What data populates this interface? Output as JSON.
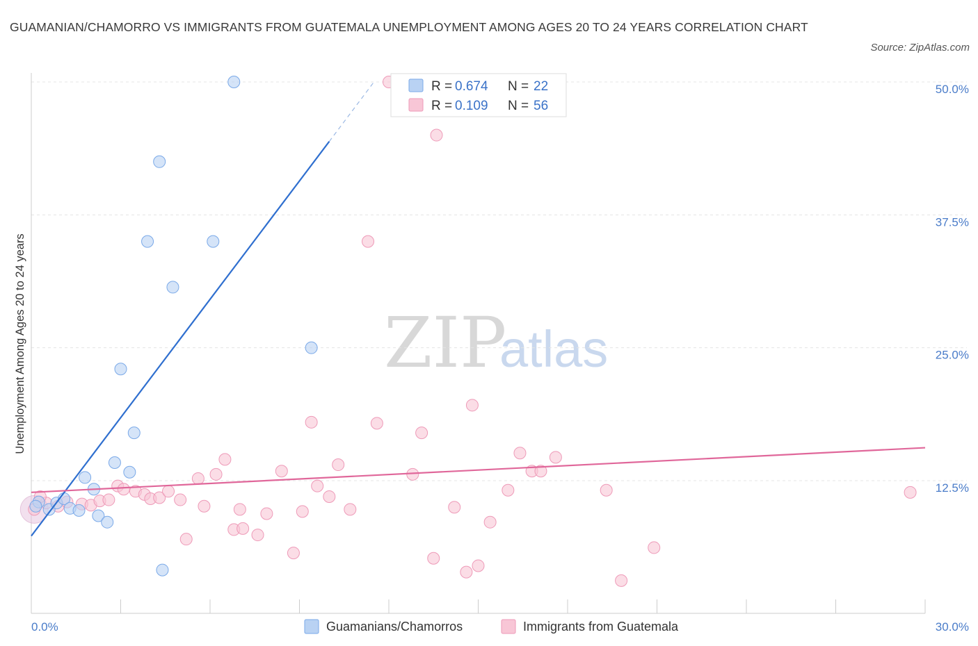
{
  "title": "GUAMANIAN/CHAMORRO VS IMMIGRANTS FROM GUATEMALA UNEMPLOYMENT AMONG AGES 20 TO 24 YEARS CORRELATION CHART",
  "source": "Source: ZipAtlas.com",
  "watermark": {
    "zip": "ZIP",
    "atlas": "atlas"
  },
  "chart_data": {
    "type": "scatter",
    "xlabel": "",
    "ylabel": "Unemployment Among Ages 20 to 24 years",
    "xlim": [
      0,
      30
    ],
    "ylim": [
      0,
      52
    ],
    "x_tick_labels": [
      {
        "value": 0,
        "label": "0.0%"
      },
      {
        "value": 30,
        "label": "30.0%"
      }
    ],
    "y_tick_labels": [
      {
        "value": 12.5,
        "label": "12.5%"
      },
      {
        "value": 25,
        "label": "25.0%"
      },
      {
        "value": 37.5,
        "label": "37.5%"
      },
      {
        "value": 50,
        "label": "50.0%"
      }
    ],
    "legend": {
      "entries": [
        {
          "r_label": "R = ",
          "r_value": "0.674",
          "n_label": "N = ",
          "n_value": "22"
        },
        {
          "r_label": "R = ",
          "r_value": "0.109",
          "n_label": "N = ",
          "n_value": "56"
        }
      ]
    },
    "series": [
      {
        "name": "Guamanians/Chamorros",
        "color": "#7aa9e8",
        "fill": "#b9d2f3",
        "line_color": "#2f6fcf",
        "trend": {
          "x0": 0,
          "y0": 7.3,
          "x1": 10.0,
          "y1": 44.4,
          "dash_x1": 11.5,
          "dash_y1": 50.0
        },
        "points": [
          {
            "x": 0.25,
            "y": 10.5
          },
          {
            "x": 0.6,
            "y": 9.8
          },
          {
            "x": 0.85,
            "y": 10.4
          },
          {
            "x": 1.1,
            "y": 10.8
          },
          {
            "x": 1.3,
            "y": 9.9
          },
          {
            "x": 1.6,
            "y": 9.7
          },
          {
            "x": 1.8,
            "y": 12.8
          },
          {
            "x": 2.1,
            "y": 11.7
          },
          {
            "x": 2.25,
            "y": 9.2
          },
          {
            "x": 2.55,
            "y": 8.6
          },
          {
            "x": 2.8,
            "y": 14.2
          },
          {
            "x": 3.0,
            "y": 23.0
          },
          {
            "x": 3.3,
            "y": 13.3
          },
          {
            "x": 3.45,
            "y": 17.0
          },
          {
            "x": 3.9,
            "y": 35.0
          },
          {
            "x": 4.3,
            "y": 42.5
          },
          {
            "x": 4.4,
            "y": 4.1
          },
          {
            "x": 4.75,
            "y": 30.7
          },
          {
            "x": 6.1,
            "y": 35.0
          },
          {
            "x": 6.8,
            "y": 50.0
          },
          {
            "x": 9.4,
            "y": 25.0
          },
          {
            "x": 0.15,
            "y": 10.1
          }
        ]
      },
      {
        "name": "Immigrants from Guatemala",
        "color": "#ee9ab8",
        "fill": "#f8c6d6",
        "line_color": "#e0679a",
        "trend": {
          "x0": 0,
          "y0": 11.4,
          "x1": 30,
          "y1": 15.6
        },
        "points": [
          {
            "x": 0.1,
            "y": 9.8
          },
          {
            "x": 0.5,
            "y": 10.4
          },
          {
            "x": 0.9,
            "y": 10.1
          },
          {
            "x": 1.2,
            "y": 10.5
          },
          {
            "x": 1.7,
            "y": 10.3
          },
          {
            "x": 2.0,
            "y": 10.2
          },
          {
            "x": 2.3,
            "y": 10.6
          },
          {
            "x": 2.6,
            "y": 10.7
          },
          {
            "x": 2.9,
            "y": 12.0
          },
          {
            "x": 3.1,
            "y": 11.7
          },
          {
            "x": 3.5,
            "y": 11.5
          },
          {
            "x": 3.8,
            "y": 11.2
          },
          {
            "x": 4.0,
            "y": 10.8
          },
          {
            "x": 4.3,
            "y": 10.9
          },
          {
            "x": 4.6,
            "y": 11.5
          },
          {
            "x": 5.0,
            "y": 10.7
          },
          {
            "x": 5.2,
            "y": 7.0
          },
          {
            "x": 5.6,
            "y": 12.7
          },
          {
            "x": 5.8,
            "y": 10.1
          },
          {
            "x": 6.2,
            "y": 13.1
          },
          {
            "x": 6.5,
            "y": 14.5
          },
          {
            "x": 6.8,
            "y": 7.9
          },
          {
            "x": 7.0,
            "y": 9.8
          },
          {
            "x": 7.1,
            "y": 8.0
          },
          {
            "x": 7.6,
            "y": 7.4
          },
          {
            "x": 7.9,
            "y": 9.4
          },
          {
            "x": 8.4,
            "y": 13.4
          },
          {
            "x": 8.8,
            "y": 5.7
          },
          {
            "x": 9.1,
            "y": 9.6
          },
          {
            "x": 9.4,
            "y": 18.0
          },
          {
            "x": 9.6,
            "y": 12.0
          },
          {
            "x": 10.0,
            "y": 11.0
          },
          {
            "x": 10.3,
            "y": 14.0
          },
          {
            "x": 10.7,
            "y": 9.8
          },
          {
            "x": 11.3,
            "y": 35.0
          },
          {
            "x": 11.6,
            "y": 17.9
          },
          {
            "x": 12.0,
            "y": 50.0
          },
          {
            "x": 12.8,
            "y": 13.1
          },
          {
            "x": 13.1,
            "y": 17.0
          },
          {
            "x": 13.5,
            "y": 5.2
          },
          {
            "x": 13.6,
            "y": 45.0
          },
          {
            "x": 14.2,
            "y": 10.0
          },
          {
            "x": 14.6,
            "y": 3.9
          },
          {
            "x": 14.8,
            "y": 19.6
          },
          {
            "x": 15.0,
            "y": 4.5
          },
          {
            "x": 15.4,
            "y": 8.6
          },
          {
            "x": 16.0,
            "y": 11.6
          },
          {
            "x": 16.4,
            "y": 15.1
          },
          {
            "x": 16.8,
            "y": 13.4
          },
          {
            "x": 17.1,
            "y": 13.4
          },
          {
            "x": 17.6,
            "y": 14.7
          },
          {
            "x": 19.3,
            "y": 11.6
          },
          {
            "x": 19.8,
            "y": 3.1
          },
          {
            "x": 20.9,
            "y": 6.2
          },
          {
            "x": 29.5,
            "y": 11.4
          },
          {
            "x": 0.3,
            "y": 11.0
          }
        ]
      }
    ]
  }
}
